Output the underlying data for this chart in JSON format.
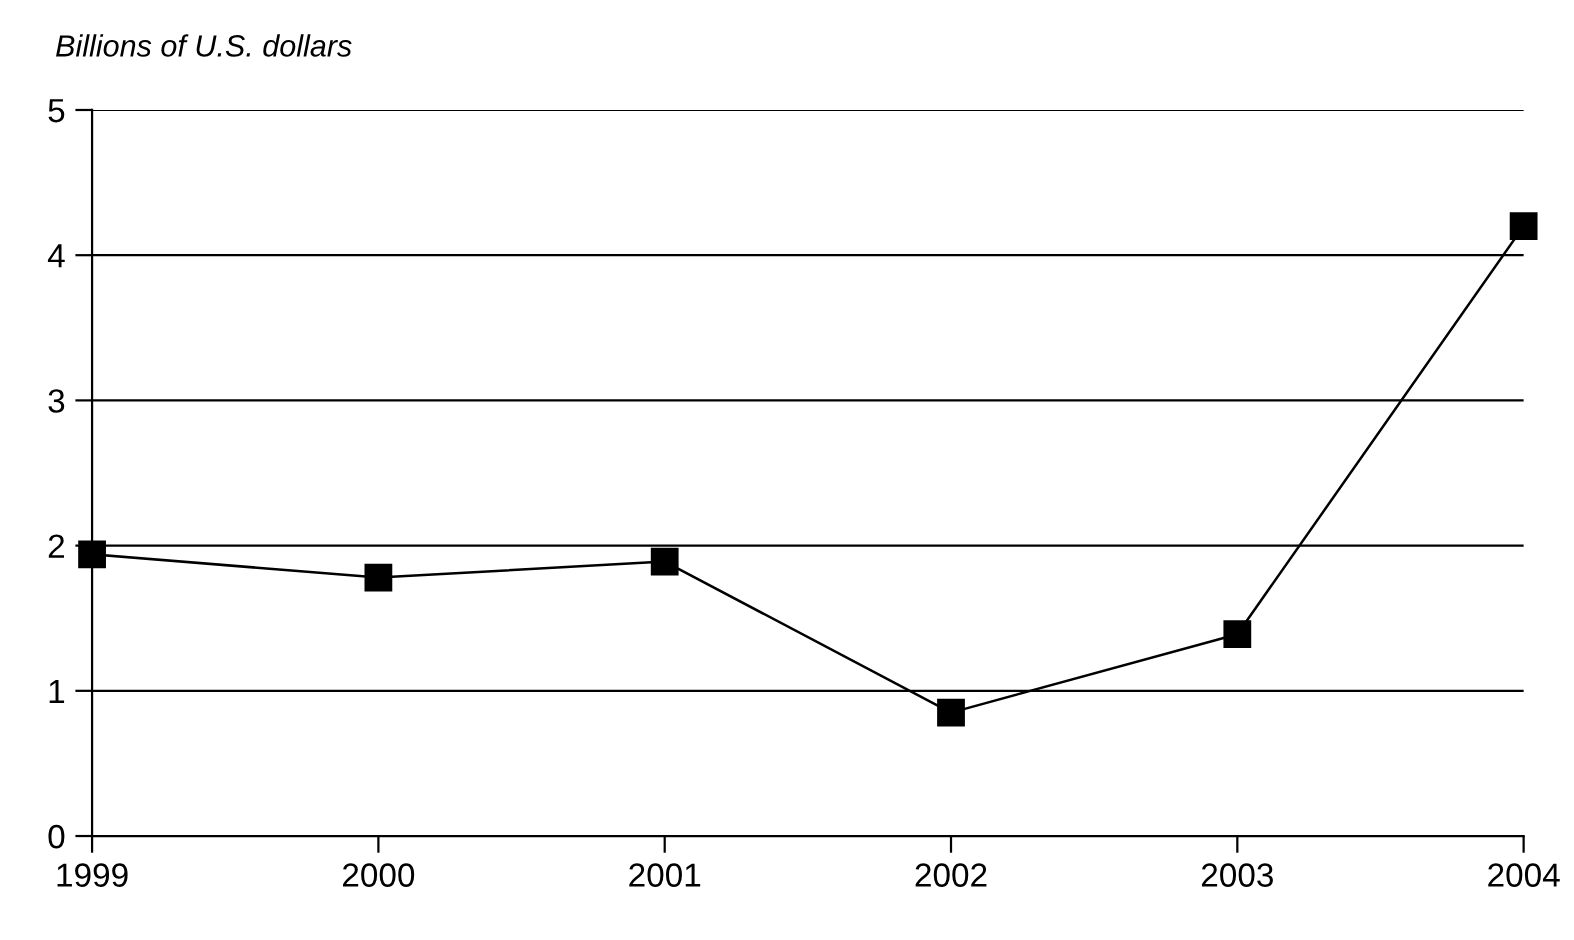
{
  "chart_data": {
    "type": "line",
    "ylabel": "Billions of U.S. dollars",
    "x": [
      1999,
      2000,
      2001,
      2002,
      2003,
      2004
    ],
    "series": [
      {
        "color": "#000000",
        "values": [
          1.94,
          1.78,
          1.89,
          0.85,
          1.39,
          4.2
        ]
      }
    ],
    "xlim": [
      1999,
      2004
    ],
    "xticks": [
      1999,
      2000,
      2001,
      2002,
      2003,
      2004
    ],
    "ylim": [
      0,
      5
    ],
    "yticks": [
      0,
      1,
      2,
      3,
      4,
      5
    ],
    "grid": "y",
    "marker": "square",
    "line_style": "solid",
    "legend": false
  }
}
